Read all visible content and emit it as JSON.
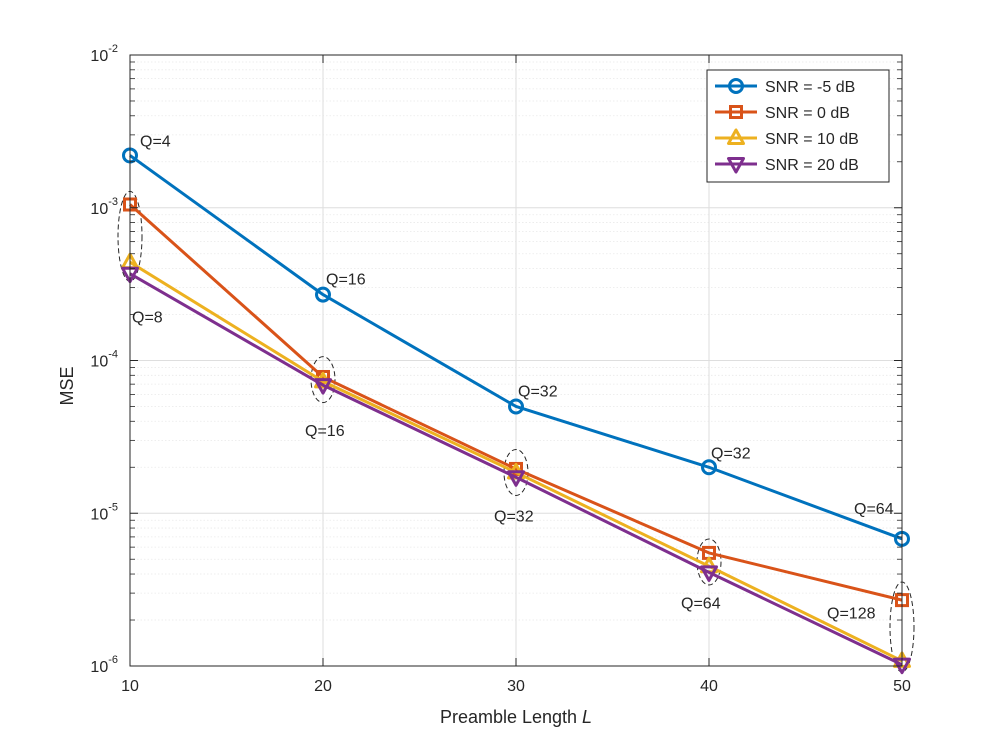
{
  "chart_data": {
    "type": "line",
    "xscale": "linear",
    "yscale": "log",
    "xlim": [
      10,
      50
    ],
    "ylim": [
      1e-06,
      0.01
    ],
    "xticks": [
      10,
      20,
      30,
      40,
      50
    ],
    "xtick_labels": [
      "10",
      "20",
      "30",
      "40",
      "50"
    ],
    "yticks": [
      1e-06,
      1e-05,
      0.0001,
      0.001,
      0.01
    ],
    "ytick_labels": [
      {
        "base": "10",
        "exp": "-6"
      },
      {
        "base": "10",
        "exp": "-5"
      },
      {
        "base": "10",
        "exp": "-4"
      },
      {
        "base": "10",
        "exp": "-3"
      },
      {
        "base": "10",
        "exp": "-2"
      }
    ],
    "xlabel": {
      "text": "Preamble Length ",
      "italic": "L"
    },
    "ylabel": "MSE",
    "grid": true,
    "legend_position": "top-right",
    "x": [
      10,
      20,
      30,
      40,
      50
    ],
    "series": [
      {
        "name": "SNR = -5 dB",
        "color": "#0072BD",
        "marker": "circle",
        "values": [
          0.0022,
          0.00027,
          5e-05,
          2e-05,
          6.8e-06
        ]
      },
      {
        "name": "SNR = 0 dB",
        "color": "#D95319",
        "marker": "square",
        "values": [
          0.00105,
          7.8e-05,
          1.95e-05,
          5.5e-06,
          2.7e-06
        ]
      },
      {
        "name": "SNR = 10 dB",
        "color": "#EDB120",
        "marker": "triangle-up",
        "values": [
          0.00044,
          7.3e-05,
          1.85e-05,
          4.5e-06,
          1.08e-06
        ]
      },
      {
        "name": "SNR = 20 dB",
        "color": "#7E2F8E",
        "marker": "triangle-down",
        "values": [
          0.00037,
          6.9e-05,
          1.72e-05,
          4.1e-06,
          1.02e-06
        ]
      }
    ],
    "annotations": [
      {
        "text": "Q=4",
        "x": 10,
        "y": 0.0022,
        "dx": 10,
        "dy": -9,
        "anchor": "start"
      },
      {
        "text": "Q=16",
        "x": 20,
        "y": 0.00027,
        "dx": 3,
        "dy": -10,
        "anchor": "start"
      },
      {
        "text": "Q=32",
        "x": 30,
        "y": 5e-05,
        "dx": 2,
        "dy": -10,
        "anchor": "start"
      },
      {
        "text": "Q=32",
        "x": 40,
        "y": 2e-05,
        "dx": 2,
        "dy": -9,
        "anchor": "start"
      },
      {
        "text": "Q=64",
        "x": 50,
        "y": 6.8e-06,
        "dx": -48,
        "dy": -25,
        "anchor": "start"
      },
      {
        "text": "Q=8",
        "x": 10,
        "y": 0.00037,
        "dx": 2,
        "dy": 49,
        "anchor": "start"
      },
      {
        "text": "Q=16",
        "x": 20,
        "y": 6.9e-05,
        "dx": -18,
        "dy": 51,
        "anchor": "start"
      },
      {
        "text": "Q=32",
        "x": 30,
        "y": 1.72e-05,
        "dx": -22,
        "dy": 44,
        "anchor": "start"
      },
      {
        "text": "Q=64",
        "x": 40,
        "y": 4.1e-06,
        "dx": -28,
        "dy": 36,
        "anchor": "start"
      },
      {
        "text": "Q=128",
        "x": 50,
        "y": 1.02e-06,
        "dx": -75,
        "dy": -46,
        "anchor": "start"
      }
    ],
    "ellipses": [
      {
        "x": 10,
        "y_center": 0.00065
      },
      {
        "x": 20,
        "y_center": 7.5e-05
      },
      {
        "x": 30,
        "y_center": 1.85e-05
      },
      {
        "x": 40,
        "y_center": 4.8e-06
      },
      {
        "x": 50,
        "y_center": 1.8e-06
      }
    ]
  }
}
